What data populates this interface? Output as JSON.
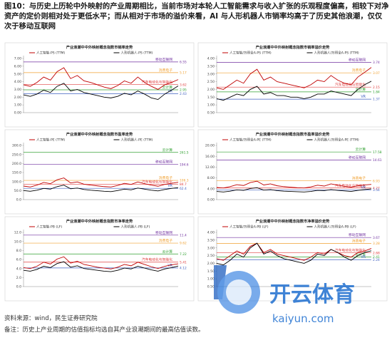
{
  "header": {
    "title": "图10：与历史上历轮中外映射的产业周期相比，当前市场对本轮人工智能需求与收入扩张的乐观程度偏高，相较下对净资产的定价则相对处于更低水平；而从相对于市场的溢价来看，AI 与人形机器人市销率均高于了历史其他浪潮，仅仅次于移动互联网"
  },
  "chart_data": [
    {
      "type": "line",
      "title": "产业浪潮中中外映射概念指数市销率走势",
      "ylim": [
        0,
        7
      ],
      "yticks": [
        {
          "value": 0,
          "label": "0.00"
        },
        {
          "value": 1,
          "label": "1.00"
        },
        {
          "value": 2,
          "label": "2.00"
        },
        {
          "value": 3,
          "label": "3.00"
        },
        {
          "value": 4,
          "label": "4.00"
        },
        {
          "value": 5,
          "label": "5.00"
        },
        {
          "value": 6,
          "label": "6.00"
        },
        {
          "value": 7,
          "label": "7.00"
        }
      ],
      "series": [
        {
          "name": "人工智能-PS (TTM)",
          "color": "#c00000",
          "values": [
            3.6,
            3.4,
            3.9,
            4.6,
            4.2,
            5.3,
            5.8,
            4.4,
            4.8,
            4.1,
            3.9,
            3.6,
            3.3,
            3.1,
            3.5,
            4.1,
            3.8,
            4.6,
            3.9,
            3.4,
            3.0,
            3.6,
            3.9,
            4.27
          ]
        },
        {
          "name": "人形机器人-PS (TTM)",
          "color": "#000000",
          "values": [
            2.3,
            2.1,
            2.4,
            2.9,
            2.6,
            3.4,
            3.8,
            2.8,
            3.0,
            2.6,
            2.4,
            2.2,
            2.0,
            1.9,
            2.1,
            2.5,
            2.3,
            2.8,
            2.4,
            1.9,
            1.7,
            2.4,
            2.9,
            3.45
          ]
        }
      ],
      "ref_lines": [
        {
          "name": "移动互联网",
          "value": 6.55,
          "color": "#7030a0"
        },
        {
          "name": "消费电子",
          "value": 5.17,
          "color": "#f0a030"
        },
        {
          "name": "汽车电动化与智能化",
          "value": 3.62,
          "color": "#e04040"
        },
        {
          "name": "云计算",
          "value": 2.95,
          "color": "#30a030"
        },
        {
          "name": "VR",
          "value": 2.43,
          "color": "#4060c0"
        }
      ]
    },
    {
      "type": "line",
      "title": "产业浪潮中中外映射概念指数市销率溢价走势",
      "ylim": [
        0.5,
        4
      ],
      "yticks": [
        {
          "value": 0.5,
          "label": "0.50"
        },
        {
          "value": 1,
          "label": "1.00"
        },
        {
          "value": 1.5,
          "label": "1.50"
        },
        {
          "value": 2,
          "label": "2.00"
        },
        {
          "value": 2.5,
          "label": "2.50"
        },
        {
          "value": 3,
          "label": "3.00"
        },
        {
          "value": 3.5,
          "label": "3.50"
        },
        {
          "value": 4,
          "label": "4.00"
        }
      ],
      "series": [
        {
          "name": "人工智能/万得全A-PS (TTM)",
          "color": "#c00000",
          "values": [
            2.1,
            2.0,
            2.3,
            2.6,
            2.4,
            3.0,
            3.3,
            2.6,
            2.8,
            2.5,
            2.4,
            2.3,
            2.2,
            2.1,
            2.3,
            2.6,
            2.5,
            2.9,
            2.6,
            2.4,
            2.3,
            2.8,
            3.1,
            3.42
          ]
        },
        {
          "name": "人形机器人/万得全A-PS (TTM)",
          "color": "#000000",
          "values": [
            1.4,
            1.3,
            1.5,
            1.7,
            1.6,
            2.0,
            2.2,
            1.7,
            1.8,
            1.6,
            1.6,
            1.5,
            1.5,
            1.4,
            1.5,
            1.7,
            1.7,
            1.9,
            1.8,
            1.7,
            1.6,
            2.0,
            2.3,
            2.53
          ]
        }
      ],
      "ref_lines": [
        {
          "name": "移动互联网",
          "value": 3.74,
          "color": "#7030a0"
        },
        {
          "name": "消费电子",
          "value": 3.07,
          "color": "#f0a030"
        },
        {
          "name": "汽车电动化与智能化",
          "value": 2.15,
          "color": "#e04040"
        },
        {
          "name": "云计算",
          "value": 1.84,
          "color": "#30a030"
        },
        {
          "name": "VR",
          "value": 1.37,
          "color": "#4060c0"
        }
      ]
    },
    {
      "type": "line",
      "title": "产业浪潮中中外映射概念指数市盈率走势",
      "ylim": [
        0,
        300
      ],
      "yticks": [
        {
          "value": 0,
          "label": "0.0"
        },
        {
          "value": 50,
          "label": "50.0"
        },
        {
          "value": 100,
          "label": "100.0"
        },
        {
          "value": 150,
          "label": "150.0"
        },
        {
          "value": 200,
          "label": "200.0"
        },
        {
          "value": 250,
          "label": "250.0"
        },
        {
          "value": 300,
          "label": "300.0"
        }
      ],
      "series": [
        {
          "name": "人工智能-PE (TTM)",
          "color": "#c00000",
          "values": [
            75,
            70,
            80,
            95,
            88,
            110,
            120,
            92,
            98,
            85,
            80,
            76,
            72,
            70,
            78,
            90,
            84,
            98,
            88,
            80,
            74,
            84,
            90,
            96.1
          ]
        },
        {
          "name": "人形机器人-PE (TTM)",
          "color": "#000000",
          "values": [
            50,
            46,
            52,
            62,
            58,
            72,
            80,
            60,
            64,
            56,
            52,
            49,
            46,
            44,
            50,
            58,
            54,
            64,
            58,
            52,
            48,
            56,
            62,
            66.2
          ]
        }
      ],
      "ref_lines": [
        {
          "name": "云计算",
          "value": 261.5,
          "color": "#30a030"
        },
        {
          "name": "移动互联网",
          "value": 194.6,
          "color": "#7030a0"
        },
        {
          "name": "消费电子",
          "value": 106.3,
          "color": "#f0a030"
        },
        {
          "name": "汽车电动化与智能化",
          "value": 84.7,
          "color": "#e04040"
        },
        {
          "name": "VR",
          "value": 62.4,
          "color": "#4060c0"
        }
      ]
    },
    {
      "type": "line",
      "title": "产业浪潮中中外映射概念指数市盈率溢价走势",
      "ylim": [
        0,
        20
      ],
      "yticks": [
        {
          "value": 0,
          "label": "0.00"
        },
        {
          "value": 4,
          "label": "4.00"
        },
        {
          "value": 8,
          "label": "8.00"
        },
        {
          "value": 12,
          "label": "12.00"
        },
        {
          "value": 16,
          "label": "16.00"
        },
        {
          "value": 20,
          "label": "20.00"
        }
      ],
      "series": [
        {
          "name": "人工智能/万得全A-PE (TTM)",
          "color": "#c00000",
          "values": [
            4.5,
            4.3,
            4.8,
            5.5,
            5.2,
            6.3,
            6.8,
            5.4,
            5.8,
            5.1,
            4.8,
            4.6,
            4.4,
            4.3,
            4.7,
            5.3,
            5.0,
            5.8,
            5.3,
            4.9,
            4.6,
            5.1,
            5.4,
            5.6
          ]
        },
        {
          "name": "人形机器人/万得全A-PE (TTM)",
          "color": "#000000",
          "values": [
            3.0,
            2.8,
            3.1,
            3.6,
            3.4,
            4.1,
            4.4,
            3.5,
            3.7,
            3.3,
            3.1,
            3.0,
            2.9,
            2.8,
            3.0,
            3.4,
            3.3,
            3.7,
            3.4,
            3.2,
            3.0,
            3.4,
            3.7,
            3.97
          ]
        }
      ],
      "ref_lines": [
        {
          "name": "云计算",
          "value": 17.58,
          "color": "#30a030"
        },
        {
          "name": "移动互联网",
          "value": 14.61,
          "color": "#7030a0"
        },
        {
          "name": "消费电子",
          "value": 6.93,
          "color": "#f0a030"
        },
        {
          "name": "汽车电动化与智能化",
          "value": 4.27,
          "color": "#e04040"
        },
        {
          "name": "VR",
          "value": 3.54,
          "color": "#4060c0"
        }
      ]
    },
    {
      "type": "line",
      "title": "产业浪潮中中外映射概念指数市净率走势",
      "ylim": [
        0,
        12
      ],
      "yticks": [
        {
          "value": 0,
          "label": "0.0"
        },
        {
          "value": 2,
          "label": "2.0"
        },
        {
          "value": 4,
          "label": "4.0"
        },
        {
          "value": 6,
          "label": "6.0"
        },
        {
          "value": 8,
          "label": "8.0"
        },
        {
          "value": 10,
          "label": "10.0"
        },
        {
          "value": 12,
          "label": "12.0"
        }
      ],
      "series": [
        {
          "name": "人工智能-PB (LF)",
          "color": "#c00000",
          "values": [
            4.2,
            4.0,
            4.5,
            5.4,
            5.0,
            6.1,
            6.6,
            5.2,
            5.6,
            4.9,
            4.6,
            4.3,
            4.1,
            3.9,
            4.3,
            4.9,
            4.6,
            5.4,
            4.9,
            4.4,
            4.0,
            4.5,
            4.8,
            5.04
          ]
        },
        {
          "name": "人形机器人-PB (LF)",
          "color": "#000000",
          "values": [
            3.6,
            3.4,
            3.8,
            4.5,
            4.2,
            5.1,
            5.5,
            4.3,
            4.6,
            4.0,
            3.8,
            3.6,
            3.4,
            3.3,
            3.6,
            4.1,
            3.9,
            4.5,
            4.1,
            3.7,
            3.4,
            3.9,
            4.2,
            4.55
          ]
        }
      ],
      "ref_lines": [
        {
          "name": "移动互联网",
          "value": 11.4,
          "color": "#7030a0"
        },
        {
          "name": "消费电子",
          "value": 9.62,
          "color": "#f0a030"
        },
        {
          "name": "云计算",
          "value": 7.22,
          "color": "#30a030"
        },
        {
          "name": "汽车电动化与智能化",
          "value": 5.41,
          "color": "#e04040"
        },
        {
          "name": "VR",
          "value": 4.12,
          "color": "#4060c0"
        }
      ]
    },
    {
      "type": "line",
      "title": "产业浪潮中中外映射概念指数市净率溢价走势",
      "ylim": [
        0.5,
        4
      ],
      "yticks": [
        {
          "value": 0.5,
          "label": "0.50"
        },
        {
          "value": 1,
          "label": "1.00"
        },
        {
          "value": 1.5,
          "label": "1.50"
        },
        {
          "value": 2,
          "label": "2.00"
        },
        {
          "value": 2.5,
          "label": "2.50"
        },
        {
          "value": 3,
          "label": "3.00"
        },
        {
          "value": 3.5,
          "label": "3.50"
        },
        {
          "value": 4,
          "label": "4.00"
        }
      ],
      "series": [
        {
          "name": "人工智能/万得全A-PB (LF)",
          "color": "#c00000",
          "values": [
            2.3,
            2.2,
            2.5,
            2.8,
            2.6,
            3.1,
            3.3,
            2.7,
            2.9,
            2.6,
            2.5,
            2.4,
            2.3,
            2.2,
            2.4,
            2.7,
            2.6,
            2.9,
            2.7,
            2.5,
            2.4,
            2.7,
            2.8,
            2.96
          ]
        },
        {
          "name": "人形机器人/万得全A-PB (LF)",
          "color": "#000000",
          "values": [
            2.0,
            1.9,
            2.2,
            2.6,
            2.4,
            3.0,
            3.3,
            2.6,
            2.8,
            2.5,
            2.3,
            2.2,
            2.1,
            2.0,
            2.2,
            2.6,
            2.5,
            2.9,
            2.7,
            2.4,
            2.2,
            2.5,
            2.7,
            2.81
          ]
        }
      ],
      "ref_lines": [
        {
          "name": "移动互联网",
          "value": 3.67,
          "color": "#7030a0"
        },
        {
          "name": "消费电子",
          "value": 3.28,
          "color": "#f0a030"
        },
        {
          "name": "汽车电动化与智能化",
          "value": 2.68,
          "color": "#e04040"
        },
        {
          "name": "云计算",
          "value": 2.41,
          "color": "#30a030"
        },
        {
          "name": "VR",
          "value": 2.24,
          "color": "#4060c0"
        }
      ]
    }
  ],
  "footer": {
    "source": "资料来源：wind，民生证券研究院",
    "note": "备注：历史上产业周期的估值指标均选自其产业浪潮期间的最高估值读数。"
  },
  "watermark": {
    "brand": "开云体育",
    "url": "kaiyun.com"
  }
}
